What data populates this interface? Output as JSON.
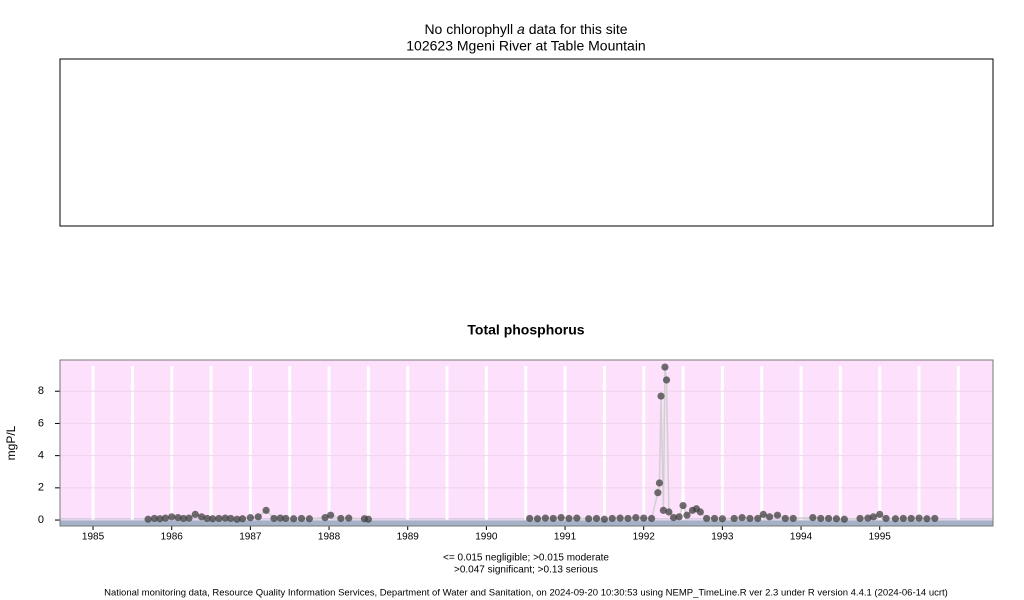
{
  "header": {
    "title_parts": [
      "No chlorophyll",
      "a",
      "data for this site"
    ],
    "subtitle": "102623 Mgeni River at Table Mountain"
  },
  "chart_data": {
    "type": "scatter",
    "title": "Total phosphorus",
    "y_label": "mgP/L",
    "xlim": [
      1984.58,
      1996.44
    ],
    "ylim": [
      -0.37,
      9.94
    ],
    "xticks": [
      1985,
      1986,
      1987,
      1988,
      1989,
      1990,
      1991,
      1992,
      1993,
      1994,
      1995
    ],
    "yticks": [
      0,
      2,
      4,
      6,
      8
    ],
    "xgrid": [
      1985,
      1985.5,
      1986,
      1986.5,
      1987,
      1987.5,
      1988,
      1988.5,
      1989,
      1989.5,
      1990,
      1990.5,
      1991,
      1991.5,
      1992,
      1992.5,
      1993,
      1993.5,
      1994,
      1994.5,
      1995,
      1995.5,
      1996
    ],
    "grid": true,
    "thresholds": [
      0.015,
      0.047,
      0.13
    ],
    "band_colors": [
      "#a3b2c6",
      "#b8c4d6",
      "#d6cce6",
      "#fde0fb"
    ],
    "color": "#404040",
    "line_color": "#d0d0d0",
    "x": [
      1985.7,
      1985.78,
      1985.85,
      1985.92,
      1986.0,
      1986.08,
      1986.15,
      1986.22,
      1986.3,
      1986.38,
      1986.45,
      1986.52,
      1986.6,
      1986.68,
      1986.75,
      1986.83,
      1986.9,
      1987.0,
      1987.1,
      1987.2,
      1987.3,
      1987.38,
      1987.45,
      1987.55,
      1987.65,
      1987.75,
      1987.95,
      1988.02,
      1988.15,
      1988.25,
      1988.45,
      1988.5,
      1989.5,
      1990.55,
      1990.65,
      1990.75,
      1990.85,
      1990.95,
      1991.05,
      1991.15,
      1991.3,
      1991.4,
      1991.5,
      1991.6,
      1991.7,
      1991.8,
      1991.9,
      1992.0,
      1992.1,
      1992.18,
      1992.2,
      1992.22,
      1992.25,
      1992.27,
      1992.29,
      1992.32,
      1992.38,
      1992.45,
      1992.5,
      1992.55,
      1992.62,
      1992.67,
      1992.72,
      1992.8,
      1992.9,
      1993.0,
      1993.15,
      1993.25,
      1993.35,
      1993.45,
      1993.52,
      1993.6,
      1993.7,
      1993.8,
      1993.9,
      1994.15,
      1994.25,
      1994.35,
      1994.45,
      1994.55,
      1994.75,
      1994.85,
      1994.92,
      1995.0,
      1995.08,
      1995.2,
      1995.3,
      1995.4,
      1995.5,
      1995.6,
      1995.7
    ],
    "values": [
      0.05,
      0.1,
      0.08,
      0.12,
      0.2,
      0.15,
      0.1,
      0.12,
      0.35,
      0.2,
      0.1,
      0.08,
      0.1,
      0.12,
      0.1,
      0.05,
      0.08,
      0.15,
      0.2,
      0.6,
      0.1,
      0.12,
      0.1,
      0.08,
      0.1,
      0.08,
      0.15,
      0.3,
      0.1,
      0.12,
      0.08,
      0.05,
      null,
      0.1,
      0.08,
      0.12,
      0.1,
      0.15,
      0.1,
      0.12,
      0.08,
      0.1,
      0.05,
      0.1,
      0.12,
      0.1,
      0.15,
      0.12,
      0.1,
      1.7,
      2.3,
      7.7,
      0.6,
      9.5,
      8.7,
      0.5,
      0.15,
      0.2,
      0.9,
      0.3,
      0.6,
      0.7,
      0.5,
      0.1,
      0.1,
      0.08,
      0.1,
      0.15,
      0.1,
      0.1,
      0.35,
      0.2,
      0.3,
      0.1,
      0.1,
      0.15,
      0.1,
      0.1,
      0.08,
      0.05,
      0.1,
      0.12,
      0.2,
      0.35,
      0.1,
      0.08,
      0.1,
      0.1,
      0.12,
      0.08,
      0.1
    ]
  },
  "notes": [
    "<= 0.015 negligible; >0.015 moderate",
    ">0.047 significant; >0.13 serious"
  ],
  "footer": "National monitoring data, Resource Quality Information Services, Department of Water and Sanitation, on 2024-09-20 10:30:53 using NEMP_TimeLine.R ver 2.3 under R version 4.4.1 (2024-06-14 ucrt)"
}
